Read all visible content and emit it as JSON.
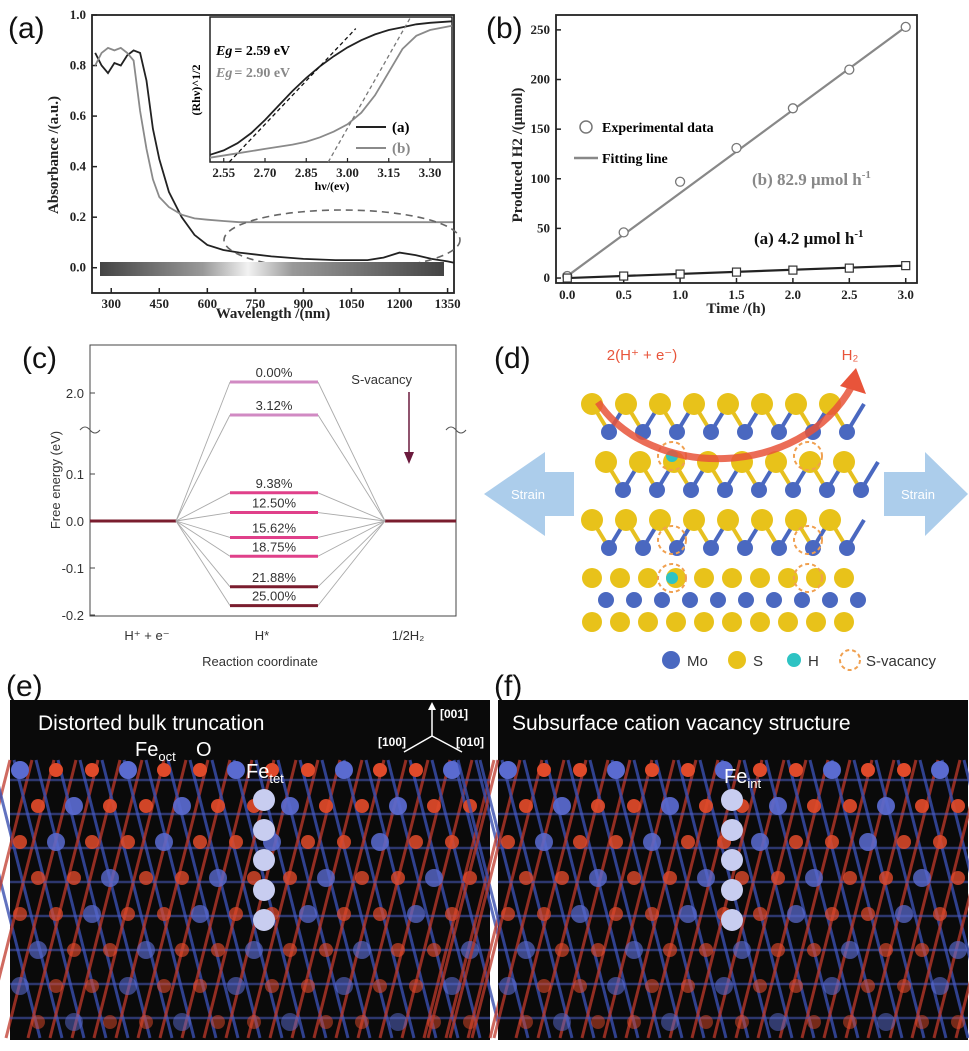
{
  "panels": {
    "a": {
      "letter": "(a)"
    },
    "b": {
      "letter": "(b)"
    },
    "c": {
      "letter": "(c)"
    },
    "d": {
      "letter": "(d)"
    },
    "e": {
      "letter": "(e)"
    },
    "f": {
      "letter": "(f)"
    }
  },
  "chart_data": [
    {
      "id": "a",
      "type": "line",
      "xlabel": "Wavelength /(nm)",
      "ylabel": "Absorbance /(a.u.)",
      "xlim": [
        240,
        1370
      ],
      "ylim": [
        -0.1,
        1.0
      ],
      "xticks": [
        "300",
        "450",
        "600",
        "750",
        "900",
        "1050",
        "1200",
        "1350"
      ],
      "yticks": [
        "0.0",
        "0.2",
        "0.4",
        "0.6",
        "0.8",
        "1.0"
      ],
      "colors": {
        "a": "#222222",
        "b": "#8a8a8a"
      },
      "series": [
        {
          "name": "(a)",
          "x": [
            250,
            270,
            290,
            310,
            330,
            350,
            370,
            390,
            410,
            430,
            450,
            480,
            520,
            560,
            600,
            650,
            700,
            800,
            900,
            1000,
            1100,
            1150,
            1200,
            1250,
            1300,
            1350,
            1370
          ],
          "y": [
            0.85,
            0.8,
            0.77,
            0.81,
            0.8,
            0.84,
            0.86,
            0.85,
            0.74,
            0.55,
            0.43,
            0.3,
            0.2,
            0.13,
            0.09,
            0.07,
            0.06,
            0.045,
            0.035,
            0.03,
            0.03,
            0.04,
            0.06,
            0.05,
            0.035,
            0.025,
            0.02
          ]
        },
        {
          "name": "(b)",
          "x": [
            250,
            270,
            290,
            310,
            330,
            350,
            370,
            390,
            410,
            430,
            450,
            480,
            520,
            560,
            600,
            650,
            700,
            800,
            900,
            1000,
            1100,
            1200,
            1300,
            1370
          ],
          "y": [
            0.8,
            0.85,
            0.87,
            0.86,
            0.87,
            0.85,
            0.82,
            0.62,
            0.47,
            0.35,
            0.28,
            0.24,
            0.21,
            0.195,
            0.19,
            0.185,
            0.18,
            0.18,
            0.18,
            0.18,
            0.18,
            0.18,
            0.18,
            0.18
          ]
        }
      ],
      "inset": {
        "xlabel": "hν/(ev)",
        "ylabel": "(Rhν)^1/2",
        "xlim": [
          2.5,
          3.38
        ],
        "xticks": [
          "2.55",
          "2.70",
          "2.85",
          "3.00",
          "3.15",
          "3.30"
        ],
        "annotations": [
          {
            "label": "Eg",
            "value": "= 2.59 eV"
          },
          {
            "label": "Eg",
            "value": "= 2.90 eV"
          }
        ],
        "legend": [
          "(a)",
          "(b)"
        ],
        "series": [
          {
            "x": [
              2.5,
              2.55,
              2.6,
              2.65,
              2.7,
              2.75,
              2.8,
              2.85,
              2.9,
              2.95,
              3.0,
              3.05,
              3.1,
              3.15,
              3.2,
              3.25,
              3.3,
              3.38
            ],
            "y": [
              0.05,
              0.08,
              0.13,
              0.2,
              0.29,
              0.39,
              0.49,
              0.58,
              0.66,
              0.73,
              0.79,
              0.84,
              0.88,
              0.91,
              0.93,
              0.95,
              0.96,
              0.97
            ]
          },
          {
            "x": [
              2.5,
              2.6,
              2.7,
              2.8,
              2.85,
              2.9,
              2.95,
              3.0,
              3.05,
              3.1,
              3.15,
              3.2,
              3.25,
              3.3,
              3.38
            ],
            "y": [
              0.03,
              0.06,
              0.09,
              0.12,
              0.14,
              0.17,
              0.21,
              0.26,
              0.34,
              0.46,
              0.62,
              0.78,
              0.87,
              0.91,
              0.94
            ]
          }
        ]
      }
    },
    {
      "id": "b",
      "type": "scatter",
      "xlabel": "Time /(h)",
      "ylabel": "Produced H2 /(μmol)",
      "xlim": [
        -0.1,
        3.1
      ],
      "ylim": [
        -5,
        265
      ],
      "xticks": [
        0.0,
        0.5,
        1.0,
        1.5,
        2.0,
        2.5,
        3.0
      ],
      "yticks": [
        0,
        50,
        100,
        150,
        200,
        250
      ],
      "legend": [
        "Experimental data",
        "Fitting line"
      ],
      "series": [
        {
          "name": "(b)",
          "rate": "(b) 82.9 μmol h",
          "x": [
            0,
            0.5,
            1.0,
            1.5,
            2.0,
            2.5,
            3.0
          ],
          "y": [
            2,
            46,
            97,
            131,
            171,
            210,
            253
          ]
        },
        {
          "name": "(a)",
          "rate": "(a) 4.2 μmol h",
          "x": [
            0,
            0.5,
            1.0,
            1.5,
            2.0,
            2.5,
            3.0
          ],
          "y": [
            0,
            2,
            4,
            6,
            8,
            10,
            12.5
          ]
        }
      ]
    },
    {
      "id": "c",
      "type": "line",
      "xlabel": "Reaction coordinate",
      "ylabel": "Free energy (eV)",
      "categories": [
        "H⁺ + e⁻",
        "H*",
        "1/2H₂"
      ],
      "yticks": [
        "2.0",
        "0.1",
        "0.0",
        "-0.1",
        "-0.2"
      ],
      "annotation": "S-vacancy",
      "levels": [
        {
          "label": "0.00%",
          "value": 2.2
        },
        {
          "label": "3.12%",
          "value": 1.6
        },
        {
          "label": "9.38%",
          "value": 0.06
        },
        {
          "label": "12.50%",
          "value": 0.018
        },
        {
          "label": "15.62%",
          "value": -0.035
        },
        {
          "label": "18.75%",
          "value": -0.075
        },
        {
          "label": "21.88%",
          "value": -0.14
        },
        {
          "label": "25.00%",
          "value": -0.18
        }
      ]
    }
  ],
  "d": {
    "reaction": "2(H⁺ + e⁻)",
    "product": "H₂",
    "strain": "Strain",
    "legend": [
      "Mo",
      "S",
      "H",
      "S-vacancy"
    ]
  },
  "e": {
    "title": "Distorted bulk truncation",
    "fe_oct": "Fe",
    "fe_oct_sub": "oct",
    "o": "O",
    "fe_tet": "Fe",
    "fe_tet_sub": "tet",
    "axes": [
      "[001]",
      "[100]",
      "[010]"
    ]
  },
  "f": {
    "title": "Subsurface cation vacancy structure",
    "fe_int": "Fe",
    "fe_int_sub": "int"
  }
}
